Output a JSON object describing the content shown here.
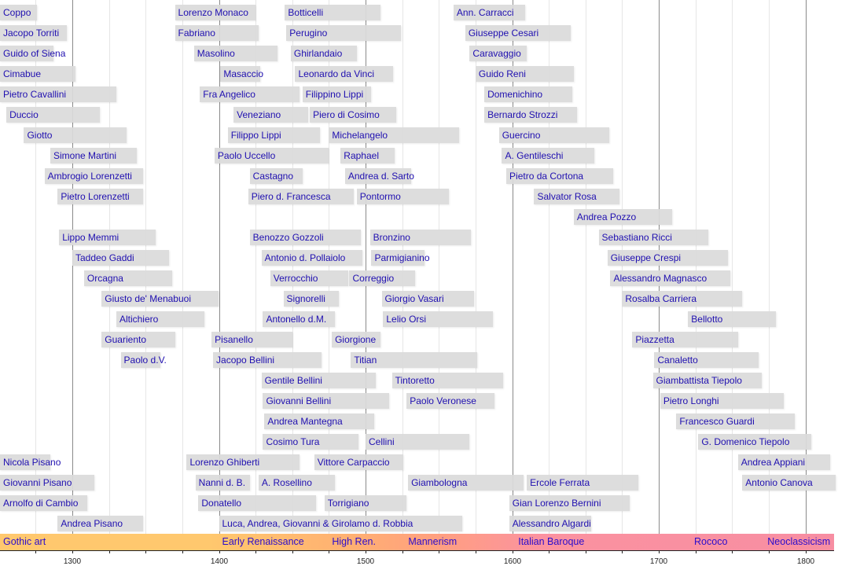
{
  "chart_data": {
    "type": "bar",
    "subtype": "timeline-range",
    "xlim": [
      1250,
      1820
    ],
    "x_ticks_minor_step": 25,
    "x_tick_labels": [
      "1300",
      "1400",
      "1500",
      "1600",
      "1700",
      "1800"
    ],
    "grid": true,
    "colors": {
      "bar": "#dadada",
      "label": "#1f0fb0",
      "grid_major": "#8a8a8a",
      "grid_minor": "#e6e6e6",
      "era_start": "#ffc86e",
      "era_mid": "#ffa07f",
      "era_end": "#f78ea2"
    },
    "rows": [
      [
        {
          "name": "Coppo",
          "start": 1250,
          "end": 1276
        },
        {
          "name": "Lorenzo Monaco",
          "start": 1370,
          "end": 1425
        },
        {
          "name": "Botticelli",
          "start": 1445,
          "end": 1510
        },
        {
          "name": "Ann. Carracci",
          "start": 1560,
          "end": 1609
        }
      ],
      [
        {
          "name": "Jacopo Torriti",
          "start": 1250,
          "end": 1296
        },
        {
          "name": "Fabriano",
          "start": 1370,
          "end": 1427
        },
        {
          "name": "Perugino",
          "start": 1446,
          "end": 1524
        },
        {
          "name": "Giuseppe Cesari",
          "start": 1568,
          "end": 1640
        }
      ],
      [
        {
          "name": "Guido of Siena",
          "start": 1250,
          "end": 1287
        },
        {
          "name": "Masolino",
          "start": 1383,
          "end": 1440
        },
        {
          "name": "Ghirlandaio",
          "start": 1449,
          "end": 1494
        },
        {
          "name": "Caravaggio",
          "start": 1571,
          "end": 1610
        }
      ],
      [
        {
          "name": "Cimabue",
          "start": 1250,
          "end": 1302
        },
        {
          "name": "Masaccio",
          "start": 1401,
          "end": 1428
        },
        {
          "name": "Leonardo da Vinci",
          "start": 1452,
          "end": 1519
        },
        {
          "name": "Guido Reni",
          "start": 1575,
          "end": 1642
        }
      ],
      [
        {
          "name": "Pietro Cavallini",
          "start": 1250,
          "end": 1330
        },
        {
          "name": "Fra Angelico",
          "start": 1387,
          "end": 1455
        },
        {
          "name": "Filippino Lippi",
          "start": 1457,
          "end": 1504
        },
        {
          "name": "Domenichino",
          "start": 1581,
          "end": 1641
        }
      ],
      [
        {
          "name": "Duccio",
          "start": 1255,
          "end": 1319
        },
        {
          "name": "Veneziano",
          "start": 1410,
          "end": 1461
        },
        {
          "name": "Piero di Cosimo",
          "start": 1462,
          "end": 1521
        },
        {
          "name": "Bernardo Strozzi",
          "start": 1581,
          "end": 1644
        }
      ],
      [
        {
          "name": "Giotto",
          "start": 1267,
          "end": 1337
        },
        {
          "name": "Filippo Lippi",
          "start": 1406,
          "end": 1469
        },
        {
          "name": "Michelangelo",
          "start": 1475,
          "end": 1564
        },
        {
          "name": "Guercino",
          "start": 1591,
          "end": 1666
        }
      ],
      [
        {
          "name": "Simone Martini",
          "start": 1285,
          "end": 1344
        },
        {
          "name": "Paolo Uccello",
          "start": 1397,
          "end": 1475
        },
        {
          "name": "Raphael",
          "start": 1483,
          "end": 1520
        },
        {
          "name": "A. Gentileschi",
          "start": 1593,
          "end": 1656
        }
      ],
      [
        {
          "name": "Ambrogio Lorenzetti",
          "start": 1281,
          "end": 1348
        },
        {
          "name": "Castagno",
          "start": 1421,
          "end": 1457
        },
        {
          "name": "Andrea d. Sarto",
          "start": 1486,
          "end": 1531
        },
        {
          "name": "Pietro da Cortona",
          "start": 1596,
          "end": 1669
        }
      ],
      [
        {
          "name": "Pietro Lorenzetti",
          "start": 1290,
          "end": 1348
        },
        {
          "name": "Piero d. Francesca",
          "start": 1420,
          "end": 1492
        },
        {
          "name": "Pontormo",
          "start": 1494,
          "end": 1557
        },
        {
          "name": "Salvator Rosa",
          "start": 1615,
          "end": 1673
        }
      ],
      [
        {
          "name": "Andrea Pozzo",
          "start": 1642,
          "end": 1709
        }
      ],
      [
        {
          "name": "Lippo Memmi",
          "start": 1291,
          "end": 1357
        },
        {
          "name": "Benozzo Gozzoli",
          "start": 1421,
          "end": 1497
        },
        {
          "name": "Bronzino",
          "start": 1503,
          "end": 1572
        },
        {
          "name": "Sebastiano Ricci",
          "start": 1659,
          "end": 1734
        }
      ],
      [
        {
          "name": "Taddeo Gaddi",
          "start": 1300,
          "end": 1366
        },
        {
          "name": "Antonio d. Pollaiolo",
          "start": 1429,
          "end": 1498
        },
        {
          "name": "Parmigianino",
          "start": 1504,
          "end": 1540
        },
        {
          "name": "Giuseppe Crespi",
          "start": 1665,
          "end": 1747
        }
      ],
      [
        {
          "name": "Orcagna",
          "start": 1308,
          "end": 1368
        },
        {
          "name": "Verrocchio",
          "start": 1435,
          "end": 1488
        },
        {
          "name": "Correggio",
          "start": 1489,
          "end": 1534
        },
        {
          "name": "Alessandro Magnasco",
          "start": 1667,
          "end": 1749
        }
      ],
      [
        {
          "name": "Giusto de' Menabuoi",
          "start": 1320,
          "end": 1400
        },
        {
          "name": "Signorelli",
          "start": 1444,
          "end": 1482
        },
        {
          "name": "Giorgio Vasari",
          "start": 1511,
          "end": 1574
        },
        {
          "name": "Rosalba Carriera",
          "start": 1675,
          "end": 1757
        }
      ],
      [
        {
          "name": "Altichiero",
          "start": 1330,
          "end": 1390
        },
        {
          "name": "Antonello d.M.",
          "start": 1430,
          "end": 1479
        },
        {
          "name": "Lelio Orsi",
          "start": 1512,
          "end": 1587
        },
        {
          "name": "Bellotto",
          "start": 1720,
          "end": 1780
        }
      ],
      [
        {
          "name": "Guariento",
          "start": 1320,
          "end": 1370
        },
        {
          "name": "Pisanello",
          "start": 1395,
          "end": 1450
        },
        {
          "name": "Giorgione",
          "start": 1477,
          "end": 1510
        },
        {
          "name": "Piazzetta",
          "start": 1682,
          "end": 1754
        }
      ],
      [
        {
          "name": "Paolo d.V.",
          "start": 1333,
          "end": 1360
        },
        {
          "name": "Jacopo Bellini",
          "start": 1396,
          "end": 1470
        },
        {
          "name": "Titian",
          "start": 1490,
          "end": 1576
        },
        {
          "name": "Canaletto",
          "start": 1697,
          "end": 1768
        }
      ],
      [
        {
          "name": "Gentile Bellini",
          "start": 1429,
          "end": 1507
        },
        {
          "name": "Tintoretto",
          "start": 1518,
          "end": 1594
        },
        {
          "name": "Giambattista Tiepolo",
          "start": 1696,
          "end": 1770
        }
      ],
      [
        {
          "name": "Giovanni Bellini",
          "start": 1430,
          "end": 1516
        },
        {
          "name": "Paolo Veronese",
          "start": 1528,
          "end": 1588
        },
        {
          "name": "Pietro Longhi",
          "start": 1701,
          "end": 1785
        }
      ],
      [
        {
          "name": "Andrea Mantegna",
          "start": 1431,
          "end": 1506
        },
        {
          "name": "Francesco Guardi",
          "start": 1712,
          "end": 1793
        }
      ],
      [
        {
          "name": "Cosimo Tura",
          "start": 1430,
          "end": 1495
        },
        {
          "name": "Cellini",
          "start": 1500,
          "end": 1571
        },
        {
          "name": "G. Domenico Tiepolo",
          "start": 1727,
          "end": 1804
        }
      ],
      [
        {
          "name": "Nicola Pisano",
          "start": 1250,
          "end": 1285
        },
        {
          "name": "Lorenzo Ghiberti",
          "start": 1378,
          "end": 1455
        },
        {
          "name": "Vittore Carpaccio",
          "start": 1465,
          "end": 1526
        },
        {
          "name": "Andrea Appiani",
          "start": 1754,
          "end": 1817
        }
      ],
      [
        {
          "name": "Giovanni Pisano",
          "start": 1250,
          "end": 1315
        },
        {
          "name": "Nanni d. B.",
          "start": 1384,
          "end": 1421
        },
        {
          "name": "A. Rosellino",
          "start": 1427,
          "end": 1479
        },
        {
          "name": "Giambologna",
          "start": 1529,
          "end": 1608
        },
        {
          "name": "Ercole Ferrata",
          "start": 1610,
          "end": 1686
        },
        {
          "name": "Antonio Canova",
          "start": 1757,
          "end": 1822
        }
      ],
      [
        {
          "name": "Arnolfo di Cambio",
          "start": 1250,
          "end": 1310
        },
        {
          "name": "Donatello",
          "start": 1386,
          "end": 1466
        },
        {
          "name": "Torrigiano",
          "start": 1472,
          "end": 1528
        },
        {
          "name": "Gian Lorenzo Bernini",
          "start": 1598,
          "end": 1680
        }
      ],
      [
        {
          "name": "Andrea Pisano",
          "start": 1290,
          "end": 1348
        },
        {
          "name": "Luca, Andrea, Giovanni & Girolamo d. Robbia",
          "start": 1400,
          "end": 1566
        },
        {
          "name": "Alessandro Algardi",
          "start": 1598,
          "end": 1654
        }
      ]
    ],
    "eras": [
      {
        "label": "Gothic art",
        "start": 1250
      },
      {
        "label": "Early Renaissance",
        "start": 1400
      },
      {
        "label": "High Ren.",
        "start": 1475
      },
      {
        "label": "Mannerism",
        "start": 1527
      },
      {
        "label": "Italian Baroque",
        "start": 1602
      },
      {
        "label": "Rococo",
        "start": 1722
      },
      {
        "label": "Neoclassicism",
        "start": 1772
      }
    ]
  }
}
